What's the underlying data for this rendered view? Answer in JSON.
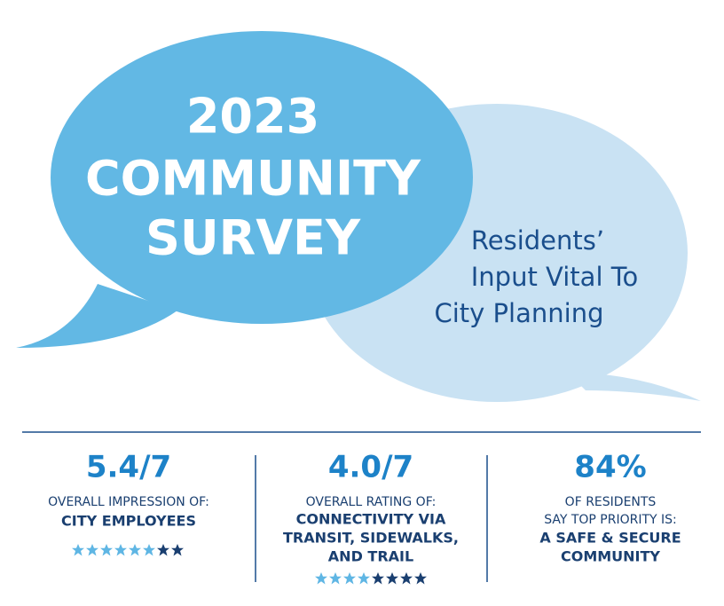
{
  "title": {
    "lines": [
      "2023",
      "COMMUNITY",
      "SURVEY"
    ]
  },
  "subtitle": {
    "lines": [
      "Residents’",
      "Input Vital To",
      "City Planning"
    ]
  },
  "stats": [
    {
      "figure": "5.4/7",
      "lines": [
        "OVERALL IMPRESSION OF:"
      ],
      "highlight": [
        "CITY EMPLOYEES"
      ]
    },
    {
      "figure": "4.0/7",
      "lines": [
        "OVERALL RATING OF:"
      ],
      "highlight": [
        "CONNECTIVITY VIA",
        "TRANSIT, SIDEWALKS,",
        "AND TRAIL"
      ]
    },
    {
      "figure": "84%",
      "lines": [
        "OF RESIDENTS",
        "SAY TOP PRIORITY IS:"
      ],
      "highlight": [
        "A SAFE & SECURE",
        "COMMUNITY"
      ]
    }
  ]
}
